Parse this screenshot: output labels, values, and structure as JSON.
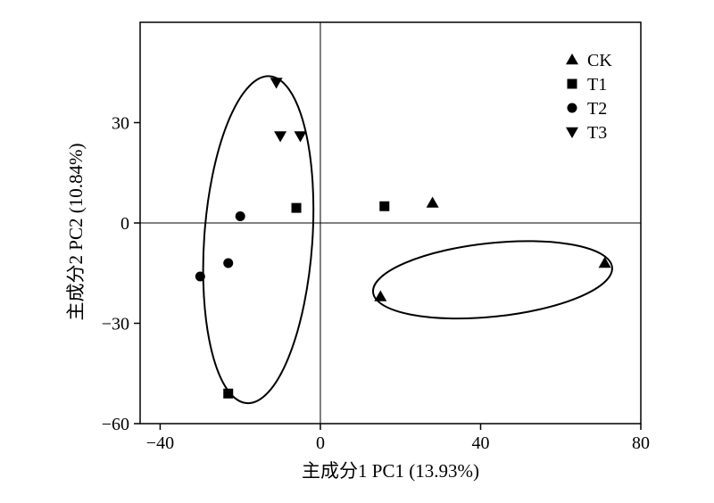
{
  "chart_data": {
    "type": "scatter",
    "xlabel": "主成分1 PC1 (13.93%)",
    "ylabel": "主成分2 PC2 (10.84%)",
    "xlim": [
      -45,
      80
    ],
    "ylim": [
      -60,
      60
    ],
    "xticks": [
      -40,
      0,
      40,
      80
    ],
    "yticks": [
      -60,
      -30,
      0,
      30
    ],
    "xtick_labels": [
      "−40",
      "0",
      "40",
      "80"
    ],
    "ytick_labels": [
      "−60",
      "−30",
      "0",
      "30"
    ],
    "zero_lines": true,
    "grid": false,
    "legend_position": "top-right",
    "series": [
      {
        "name": "CK",
        "marker": "triangle-up",
        "points": [
          [
            28,
            6
          ],
          [
            71,
            -12
          ],
          [
            15,
            -22
          ]
        ]
      },
      {
        "name": "T1",
        "marker": "square",
        "points": [
          [
            16,
            5
          ],
          [
            -6,
            4.5
          ],
          [
            -23,
            -51
          ]
        ]
      },
      {
        "name": "T2",
        "marker": "circle",
        "points": [
          [
            -20,
            2
          ],
          [
            -23,
            -12
          ],
          [
            -30,
            -16
          ]
        ]
      },
      {
        "name": "T3",
        "marker": "triangle-down",
        "points": [
          [
            -11,
            42
          ],
          [
            -10,
            26
          ],
          [
            -5,
            26
          ]
        ]
      }
    ],
    "ellipses": [
      {
        "center": [
          -15.5,
          -5
        ],
        "rx": 13.5,
        "ry": 49,
        "rotation": 4
      },
      {
        "center": [
          43,
          -17
        ],
        "rx": 30,
        "ry": 11,
        "rotation": -6
      }
    ]
  }
}
